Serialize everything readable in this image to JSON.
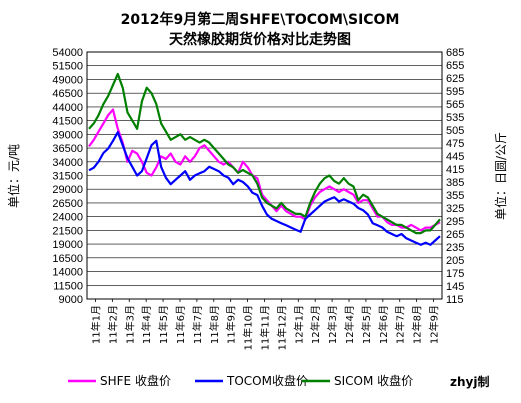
{
  "chart_data": {
    "type": "line",
    "title": "2012年9月第二周SHFE\\TOCOM\\SICOM",
    "subtitle": "天然橡胶期货价格对比走势图",
    "ylabel_left": "单位：元/吨",
    "ylabel_right": "单位：日圆/公斤",
    "ylim_left": [
      9000,
      54000
    ],
    "yticks_left": [
      9000,
      11500,
      14000,
      16500,
      19000,
      21500,
      24000,
      26500,
      29000,
      31500,
      34000,
      36500,
      39000,
      41500,
      44000,
      46500,
      49000,
      51500,
      54000
    ],
    "ylim_right": [
      115,
      685
    ],
    "yticks_right": [
      115,
      145,
      175,
      205,
      235,
      265,
      295,
      325,
      355,
      385,
      415,
      445,
      475,
      505,
      535,
      565,
      595,
      625,
      655,
      685
    ],
    "xticks": [
      "11年1月",
      "11年2月",
      "11年3月",
      "11年4月",
      "11年5月",
      "11年6月",
      "11年7月",
      "11年8月",
      "11年9月",
      "11年10月",
      "11年11月",
      "11年12月",
      "12年1月",
      "12年2月",
      "12年3月",
      "12年4月",
      "12年5月",
      "12年6月",
      "12年7月",
      "12年8月",
      "12年9月"
    ],
    "grid": true,
    "legend_position": "bottom",
    "series": [
      {
        "name": "SHFE 收盘价",
        "axis": "left",
        "color": "#ff00ff",
        "values": [
          36800,
          38000,
          39500,
          41000,
          42500,
          43500,
          40000,
          37500,
          34000,
          36000,
          35500,
          34000,
          32000,
          31500,
          33000,
          35000,
          34500,
          35500,
          34000,
          33500,
          35000,
          34000,
          35000,
          36500,
          37000,
          36000,
          35000,
          34000,
          33500,
          34000,
          33000,
          32000,
          34000,
          33000,
          31500,
          31000,
          28000,
          27000,
          26000,
          25000,
          26000,
          25000,
          24500,
          24000,
          24000,
          23500,
          26000,
          27500,
          28500,
          29000,
          29500,
          29000,
          28500,
          29000,
          28500,
          28000,
          26500,
          27000,
          27000,
          25500,
          24000,
          24000,
          23000,
          22500,
          22500,
          22000,
          22000,
          22500,
          22000,
          21500,
          22000,
          22000,
          22500,
          23000
        ]
      },
      {
        "name": "TOCOM收盘价",
        "axis": "right",
        "color": "#0000ff",
        "values": [
          412,
          418,
          432,
          452,
          462,
          480,
          500,
          470,
          440,
          420,
          400,
          410,
          440,
          470,
          480,
          420,
          395,
          380,
          390,
          400,
          410,
          390,
          400,
          405,
          410,
          420,
          415,
          410,
          400,
          395,
          380,
          390,
          385,
          375,
          360,
          355,
          330,
          310,
          300,
          295,
          290,
          285,
          280,
          275,
          270,
          300,
          310,
          320,
          330,
          340,
          345,
          350,
          340,
          345,
          340,
          335,
          325,
          320,
          310,
          290,
          285,
          280,
          270,
          265,
          260,
          265,
          255,
          250,
          245,
          240,
          245,
          240,
          250,
          260
        ]
      },
      {
        "name": "SICOM 收盘价",
        "axis": "left",
        "color": "#008000",
        "values": [
          40000,
          41000,
          42500,
          44500,
          46000,
          48000,
          50000,
          47500,
          43000,
          41500,
          40000,
          45000,
          47500,
          46500,
          44500,
          41000,
          39500,
          38000,
          38500,
          39000,
          38000,
          38500,
          38000,
          37500,
          38000,
          37500,
          36500,
          35500,
          34500,
          33500,
          33000,
          32000,
          32500,
          32000,
          31500,
          30000,
          27500,
          26500,
          26000,
          25500,
          26500,
          25500,
          25000,
          24500,
          24500,
          24000,
          26500,
          28500,
          30000,
          31000,
          31500,
          30500,
          30000,
          31000,
          30000,
          29500,
          27000,
          28000,
          27500,
          26000,
          24500,
          24000,
          23500,
          23000,
          22500,
          22500,
          22000,
          21500,
          21000,
          21000,
          21500,
          21500,
          22500,
          23500
        ]
      }
    ]
  },
  "footer": {
    "credit": "zhyj制"
  }
}
